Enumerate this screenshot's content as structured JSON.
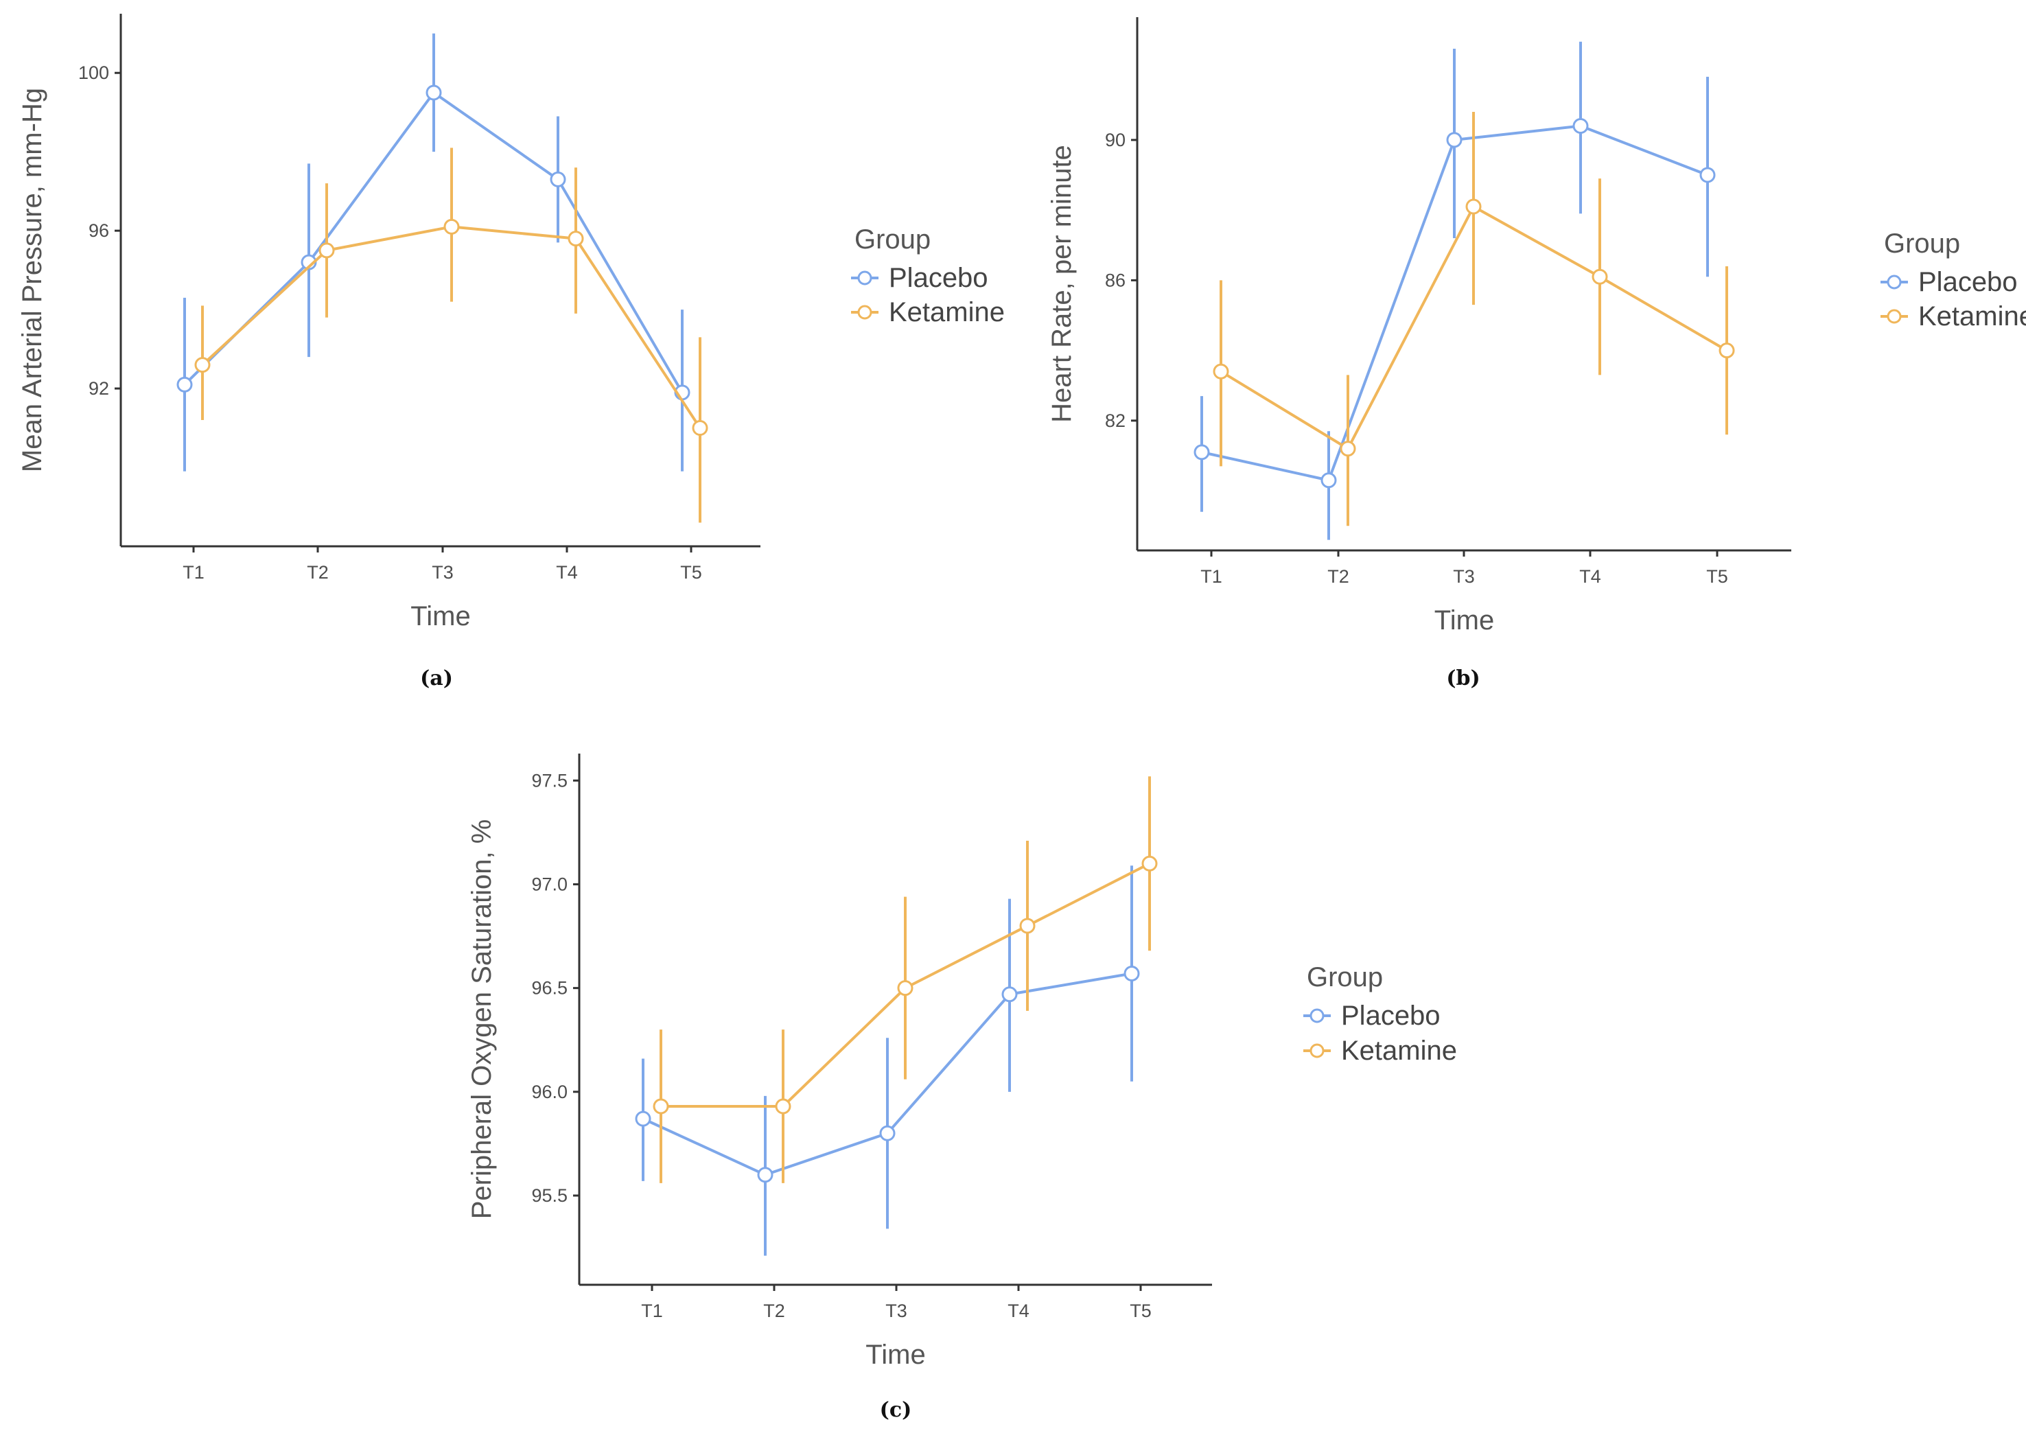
{
  "chart_data": [
    {
      "type": "line",
      "panel_label": "(a)",
      "xlabel": "Time",
      "ylabel": "Mean Arterial Pressure, mm-Hg",
      "categories": [
        "T1",
        "T2",
        "T3",
        "T4",
        "T5"
      ],
      "ylim": [
        88,
        101.5
      ],
      "yticks": [
        92,
        96,
        100
      ],
      "legend": {
        "title": "Group",
        "position": "right"
      },
      "series": [
        {
          "name": "Placebo",
          "color": "#7da7ea",
          "values": [
            92.1,
            95.2,
            99.5,
            97.3,
            91.9
          ],
          "lower": [
            89.9,
            92.8,
            98.0,
            95.7,
            89.9
          ],
          "upper": [
            94.3,
            97.7,
            101.0,
            98.9,
            94.0
          ]
        },
        {
          "name": "Ketamine",
          "color": "#f0b65a",
          "values": [
            92.6,
            95.5,
            96.1,
            95.8,
            91.0
          ],
          "lower": [
            91.2,
            93.8,
            94.2,
            93.9,
            88.6
          ],
          "upper": [
            94.1,
            97.2,
            98.1,
            97.6,
            93.3
          ]
        }
      ]
    },
    {
      "type": "line",
      "panel_label": "(b)",
      "xlabel": "Time",
      "ylabel": "Heart Rate, per minute",
      "categories": [
        "T1",
        "T2",
        "T3",
        "T4",
        "T5"
      ],
      "ylim": [
        78.3,
        93.5
      ],
      "yticks": [
        82,
        86,
        90
      ],
      "legend": {
        "title": "Group",
        "position": "right"
      },
      "series": [
        {
          "name": "Placebo",
          "color": "#7da7ea",
          "values": [
            81.1,
            80.3,
            90.0,
            90.4,
            89.0
          ],
          "lower": [
            79.4,
            78.6,
            87.2,
            87.9,
            86.1
          ],
          "upper": [
            82.7,
            81.7,
            92.6,
            92.8,
            91.8
          ]
        },
        {
          "name": "Ketamine",
          "color": "#f0b65a",
          "values": [
            83.4,
            81.2,
            88.1,
            86.1,
            84.0
          ],
          "lower": [
            80.7,
            79.0,
            85.3,
            83.3,
            81.6
          ],
          "upper": [
            86.0,
            83.3,
            90.8,
            88.9,
            86.4
          ]
        }
      ]
    },
    {
      "type": "line",
      "panel_label": "(c)",
      "xlabel": "Time",
      "ylabel": "Peripheral Oxygen Saturation, %",
      "categories": [
        "T1",
        "T2",
        "T3",
        "T4",
        "T5"
      ],
      "ylim": [
        95.07,
        97.63
      ],
      "yticks": [
        "95.5",
        "96.0",
        "96.5",
        "97.0",
        "97.5"
      ],
      "legend": {
        "title": "Group",
        "position": "right"
      },
      "series": [
        {
          "name": "Placebo",
          "color": "#7da7ea",
          "values": [
            95.87,
            95.6,
            95.8,
            96.47,
            96.57
          ],
          "lower": [
            95.57,
            95.21,
            95.34,
            96.0,
            96.05
          ],
          "upper": [
            96.16,
            95.98,
            96.26,
            96.93,
            97.09
          ]
        },
        {
          "name": "Ketamine",
          "color": "#f0b65a",
          "values": [
            95.93,
            95.93,
            96.5,
            96.8,
            97.1
          ],
          "lower": [
            95.56,
            95.56,
            96.06,
            96.39,
            96.68
          ],
          "upper": [
            96.3,
            96.3,
            96.94,
            97.21,
            97.52
          ]
        }
      ]
    }
  ]
}
